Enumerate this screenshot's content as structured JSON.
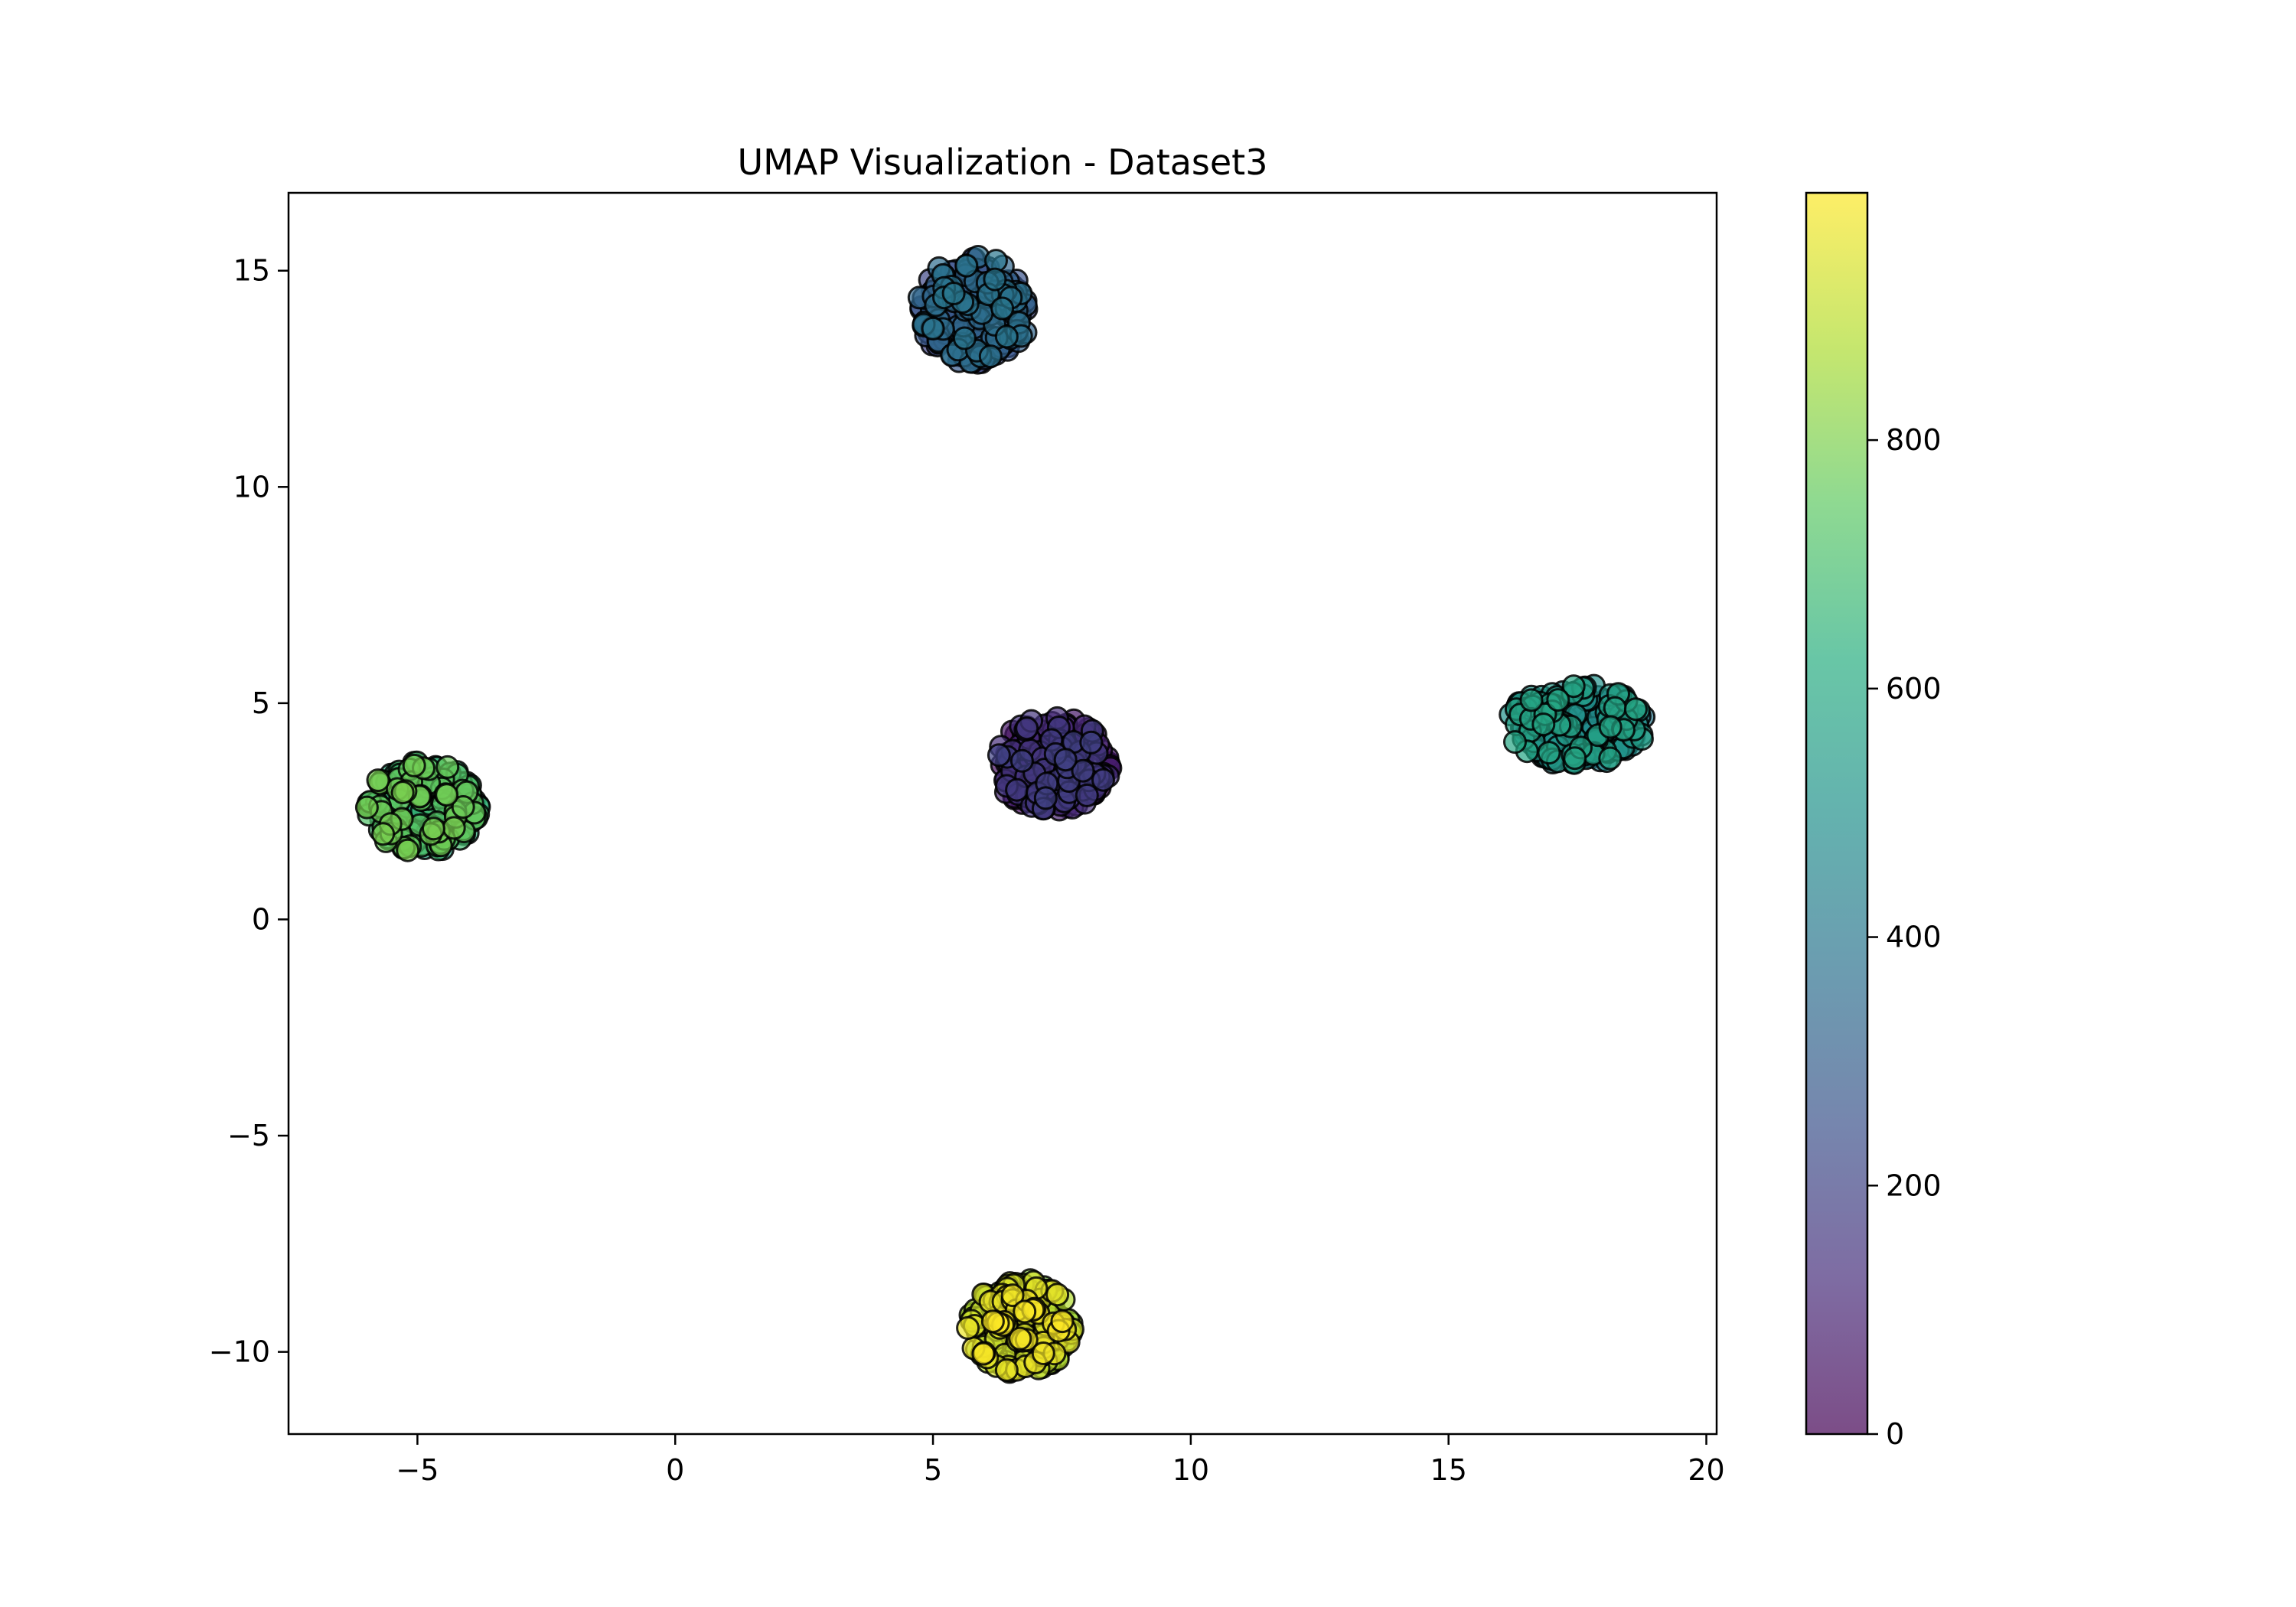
{
  "chart_data": {
    "type": "scatter",
    "title": "UMAP Visualization - Dataset3",
    "xlabel": "",
    "ylabel": "",
    "xlim": [
      -7.5,
      20.2
    ],
    "ylim": [
      -11.9,
      16.8
    ],
    "xticks": [
      -5,
      0,
      5,
      10,
      15,
      20
    ],
    "xtick_labels": [
      "−5",
      "0",
      "5",
      "10",
      "15",
      "20"
    ],
    "yticks": [
      -10,
      -5,
      0,
      5,
      10,
      15
    ],
    "ytick_labels": [
      "−10",
      "−5",
      "0",
      "5",
      "10",
      "15"
    ],
    "grid": false,
    "colormap": "viridis",
    "point_alpha": 0.7,
    "point_edgecolor": "#000000",
    "colorbar": {
      "range": [
        0,
        999
      ],
      "ticks": [
        0,
        200,
        400,
        600,
        800
      ],
      "tick_labels": [
        "0",
        "200",
        "400",
        "600",
        "800"
      ]
    },
    "clusters": [
      {
        "center": [
          7.3,
          3.6
        ],
        "radius": [
          1.15,
          1.1
        ],
        "value_range": [
          0,
          200
        ],
        "count": 200
      },
      {
        "center": [
          5.8,
          14.1
        ],
        "radius": [
          1.1,
          1.25
        ],
        "value_range": [
          200,
          400
        ],
        "count": 200
      },
      {
        "center": [
          17.5,
          4.5
        ],
        "radius": [
          1.35,
          0.95
        ],
        "value_range": [
          400,
          600
        ],
        "count": 200
      },
      {
        "center": [
          -4.9,
          2.6
        ],
        "radius": [
          1.1,
          1.05
        ],
        "value_range": [
          600,
          800
        ],
        "count": 200
      },
      {
        "center": [
          6.7,
          -9.4
        ],
        "radius": [
          1.05,
          1.1
        ],
        "value_range": [
          800,
          999
        ],
        "count": 200
      }
    ]
  }
}
